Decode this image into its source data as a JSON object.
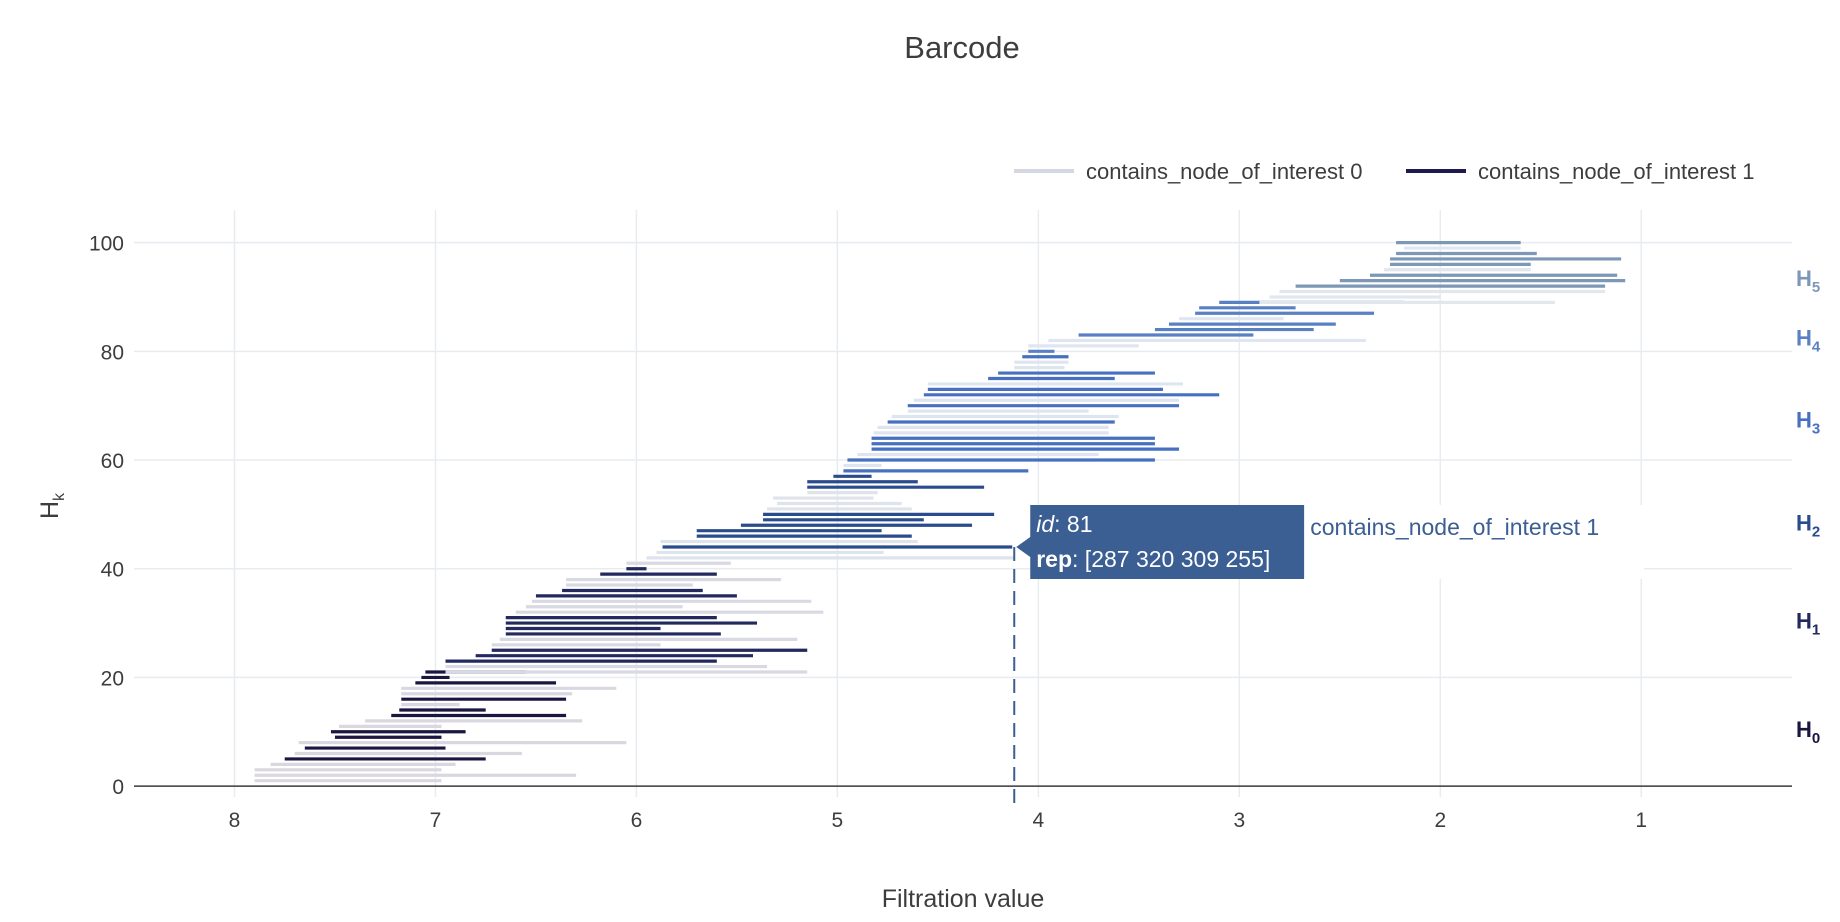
{
  "chart_data": {
    "type": "barcode",
    "title": "Barcode",
    "xlabel": "Filtration value",
    "ylabel_main": "H",
    "ylabel_sub": "k",
    "xlim": [
      8.5,
      0.25
    ],
    "ylim": [
      -2,
      106
    ],
    "x_reversed": true,
    "x_ticks": [
      8,
      7,
      6,
      5,
      4,
      3,
      2,
      1
    ],
    "y_ticks": [
      0,
      20,
      40,
      60,
      80,
      100
    ],
    "grid": true,
    "legend_position": "top-right",
    "legend": [
      {
        "label": "contains_node_of_interest 0",
        "color": "#d5d8e2"
      },
      {
        "label": "contains_node_of_interest 1",
        "color": "#1f1a4d"
      }
    ],
    "groups": [
      {
        "main": "H",
        "sub": "0",
        "y": 10.5,
        "color": "#1a1640",
        "light": "#dad7e0",
        "bars": [
          {
            "y": 1,
            "birth": 7.9,
            "death": 6.97,
            "f": 0
          },
          {
            "y": 2,
            "birth": 7.9,
            "death": 6.3,
            "f": 0
          },
          {
            "y": 3,
            "birth": 7.9,
            "death": 6.97,
            "f": 0
          },
          {
            "y": 4,
            "birth": 7.82,
            "death": 6.9,
            "f": 0
          },
          {
            "y": 5,
            "birth": 7.75,
            "death": 6.75,
            "f": 1
          },
          {
            "y": 6,
            "birth": 7.7,
            "death": 6.57,
            "f": 0
          },
          {
            "y": 7,
            "birth": 7.65,
            "death": 6.95,
            "f": 1
          },
          {
            "y": 8,
            "birth": 7.68,
            "death": 6.05,
            "f": 0
          },
          {
            "y": 9,
            "birth": 7.5,
            "death": 6.97,
            "f": 1
          },
          {
            "y": 10,
            "birth": 7.52,
            "death": 6.85,
            "f": 1
          },
          {
            "y": 11,
            "birth": 7.48,
            "death": 6.97,
            "f": 0
          },
          {
            "y": 12,
            "birth": 7.35,
            "death": 6.27,
            "f": 0
          },
          {
            "y": 13,
            "birth": 7.22,
            "death": 6.35,
            "f": 1
          },
          {
            "y": 14,
            "birth": 7.18,
            "death": 6.75,
            "f": 1
          },
          {
            "y": 15,
            "birth": 7.17,
            "death": 6.88,
            "f": 0
          },
          {
            "y": 16,
            "birth": 7.17,
            "death": 6.35,
            "f": 1
          },
          {
            "y": 17,
            "birth": 7.17,
            "death": 6.32,
            "f": 0
          },
          {
            "y": 18,
            "birth": 7.17,
            "death": 6.1,
            "f": 0
          },
          {
            "y": 19,
            "birth": 7.1,
            "death": 6.4,
            "f": 1
          },
          {
            "y": 20,
            "birth": 7.07,
            "death": 6.93,
            "f": 1
          },
          {
            "y": 21,
            "birth": 7.05,
            "death": 6.55,
            "f": 1
          }
        ]
      },
      {
        "main": "H",
        "sub": "1",
        "y": 30.5,
        "color": "#23285e",
        "light": "#d8d9e3",
        "bars": [
          {
            "y": 21,
            "birth": 6.95,
            "death": 5.15,
            "f": 0
          },
          {
            "y": 22,
            "birth": 6.95,
            "death": 5.35,
            "f": 0
          },
          {
            "y": 23,
            "birth": 6.95,
            "death": 5.6,
            "f": 1
          },
          {
            "y": 24,
            "birth": 6.8,
            "death": 5.42,
            "f": 1
          },
          {
            "y": 25,
            "birth": 6.72,
            "death": 5.15,
            "f": 1
          },
          {
            "y": 26,
            "birth": 6.72,
            "death": 5.88,
            "f": 0
          },
          {
            "y": 27,
            "birth": 6.68,
            "death": 5.2,
            "f": 0
          },
          {
            "y": 28,
            "birth": 6.65,
            "death": 5.58,
            "f": 1
          },
          {
            "y": 29,
            "birth": 6.65,
            "death": 5.88,
            "f": 1
          },
          {
            "y": 30,
            "birth": 6.65,
            "death": 5.4,
            "f": 1
          },
          {
            "y": 31,
            "birth": 6.65,
            "death": 5.6,
            "f": 1
          },
          {
            "y": 32,
            "birth": 6.6,
            "death": 5.07,
            "f": 0
          },
          {
            "y": 33,
            "birth": 6.55,
            "death": 5.77,
            "f": 0
          },
          {
            "y": 34,
            "birth": 6.52,
            "death": 5.13,
            "f": 0
          },
          {
            "y": 35,
            "birth": 6.5,
            "death": 5.5,
            "f": 1
          },
          {
            "y": 36,
            "birth": 6.37,
            "death": 5.67,
            "f": 1
          },
          {
            "y": 37,
            "birth": 6.35,
            "death": 5.72,
            "f": 0
          },
          {
            "y": 38,
            "birth": 6.35,
            "death": 5.28,
            "f": 0
          },
          {
            "y": 39,
            "birth": 6.18,
            "death": 5.6,
            "f": 1
          },
          {
            "y": 40,
            "birth": 6.05,
            "death": 5.95,
            "f": 1
          },
          {
            "y": 41,
            "birth": 6.05,
            "death": 5.53,
            "f": 0
          }
        ]
      },
      {
        "main": "H",
        "sub": "2",
        "y": 48.5,
        "color": "#2b4c8c",
        "light": "#dfe3ec",
        "bars": [
          {
            "y": 42,
            "birth": 5.95,
            "death": 4.12,
            "f": 0
          },
          {
            "y": 43,
            "birth": 5.9,
            "death": 4.77,
            "f": 0
          },
          {
            "y": 44,
            "birth": 5.87,
            "death": 4.13,
            "f": 1
          },
          {
            "y": 45,
            "birth": 5.88,
            "death": 4.6,
            "f": 0
          },
          {
            "y": 46,
            "birth": 5.7,
            "death": 4.63,
            "f": 1
          },
          {
            "y": 47,
            "birth": 5.7,
            "death": 4.78,
            "f": 1
          },
          {
            "y": 48,
            "birth": 5.48,
            "death": 4.33,
            "f": 1
          },
          {
            "y": 49,
            "birth": 5.37,
            "death": 4.57,
            "f": 1
          },
          {
            "y": 50,
            "birth": 5.37,
            "death": 4.22,
            "f": 1
          },
          {
            "y": 51,
            "birth": 5.35,
            "death": 4.63,
            "f": 0
          },
          {
            "y": 52,
            "birth": 5.3,
            "death": 4.68,
            "f": 0
          },
          {
            "y": 53,
            "birth": 5.32,
            "death": 4.82,
            "f": 0
          },
          {
            "y": 54,
            "birth": 5.15,
            "death": 4.8,
            "f": 0
          },
          {
            "y": 55,
            "birth": 5.15,
            "death": 4.27,
            "f": 1
          },
          {
            "y": 56,
            "birth": 5.15,
            "death": 4.6,
            "f": 1
          },
          {
            "y": 57,
            "birth": 5.02,
            "death": 4.83,
            "f": 1
          }
        ]
      },
      {
        "main": "H",
        "sub": "3",
        "y": 67.5,
        "color": "#4770c0",
        "light": "#dfe5f0",
        "bars": [
          {
            "y": 58,
            "birth": 4.97,
            "death": 4.05,
            "f": 1
          },
          {
            "y": 59,
            "birth": 4.97,
            "death": 4.78,
            "f": 0
          },
          {
            "y": 60,
            "birth": 4.95,
            "death": 3.42,
            "f": 1
          },
          {
            "y": 61,
            "birth": 4.9,
            "death": 3.7,
            "f": 0
          },
          {
            "y": 62,
            "birth": 4.83,
            "death": 3.3,
            "f": 1
          },
          {
            "y": 63,
            "birth": 4.83,
            "death": 3.42,
            "f": 1
          },
          {
            "y": 64,
            "birth": 4.83,
            "death": 3.42,
            "f": 1
          },
          {
            "y": 65,
            "birth": 4.82,
            "death": 3.65,
            "f": 0
          },
          {
            "y": 66,
            "birth": 4.8,
            "death": 3.65,
            "f": 0
          },
          {
            "y": 67,
            "birth": 4.75,
            "death": 3.62,
            "f": 1
          },
          {
            "y": 68,
            "birth": 4.73,
            "death": 3.6,
            "f": 0
          },
          {
            "y": 69,
            "birth": 4.65,
            "death": 3.75,
            "f": 0
          },
          {
            "y": 70,
            "birth": 4.65,
            "death": 3.3,
            "f": 1
          },
          {
            "y": 71,
            "birth": 4.62,
            "death": 3.3,
            "f": 0
          },
          {
            "y": 72,
            "birth": 4.57,
            "death": 3.1,
            "f": 1
          },
          {
            "y": 73,
            "birth": 4.55,
            "death": 3.38,
            "f": 1
          },
          {
            "y": 74,
            "birth": 4.55,
            "death": 3.28,
            "f": 0
          },
          {
            "y": 75,
            "birth": 4.25,
            "death": 3.62,
            "f": 1
          },
          {
            "y": 76,
            "birth": 4.2,
            "death": 3.42,
            "f": 1
          },
          {
            "y": 77,
            "birth": 4.12,
            "death": 3.87,
            "f": 0
          },
          {
            "y": 78,
            "birth": 4.12,
            "death": 3.85,
            "f": 0
          },
          {
            "y": 79,
            "birth": 4.08,
            "death": 3.85,
            "f": 1
          }
        ]
      },
      {
        "main": "H",
        "sub": "4",
        "y": 82.5,
        "color": "#5a80c4",
        "light": "#e0e6f1",
        "bars": [
          {
            "y": 80,
            "birth": 4.05,
            "death": 3.92,
            "f": 1
          },
          {
            "y": 81,
            "birth": 4.05,
            "death": 3.5,
            "f": 0
          },
          {
            "y": 82,
            "birth": 3.95,
            "death": 2.37,
            "f": 0
          },
          {
            "y": 83,
            "birth": 3.8,
            "death": 2.93,
            "f": 1
          },
          {
            "y": 84,
            "birth": 3.42,
            "death": 2.63,
            "f": 1
          },
          {
            "y": 85,
            "birth": 3.35,
            "death": 2.52,
            "f": 1
          },
          {
            "y": 86,
            "birth": 3.3,
            "death": 2.78,
            "f": 0
          },
          {
            "y": 87,
            "birth": 3.22,
            "death": 2.33,
            "f": 1
          },
          {
            "y": 88,
            "birth": 3.2,
            "death": 2.72,
            "f": 1
          },
          {
            "y": 89,
            "birth": 3.1,
            "death": 2.18,
            "f": 1
          }
        ]
      },
      {
        "main": "H",
        "sub": "5",
        "y": 93.5,
        "color": "#7d97b7",
        "light": "#e2e7ee",
        "bars": [
          {
            "y": 89,
            "birth": 2.9,
            "death": 1.43,
            "f": 0
          },
          {
            "y": 90,
            "birth": 2.85,
            "death": 2.0,
            "f": 0
          },
          {
            "y": 91,
            "birth": 2.8,
            "death": 1.18,
            "f": 0
          },
          {
            "y": 92,
            "birth": 2.72,
            "death": 1.18,
            "f": 1
          },
          {
            "y": 93,
            "birth": 2.5,
            "death": 1.08,
            "f": 1
          },
          {
            "y": 94,
            "birth": 2.35,
            "death": 1.12,
            "f": 1
          },
          {
            "y": 95,
            "birth": 2.28,
            "death": 1.55,
            "f": 0
          },
          {
            "y": 96,
            "birth": 2.25,
            "death": 1.55,
            "f": 1
          },
          {
            "y": 97,
            "birth": 2.25,
            "death": 1.1,
            "f": 1
          },
          {
            "y": 98,
            "birth": 2.22,
            "death": 1.52,
            "f": 1
          },
          {
            "y": 99,
            "birth": 2.18,
            "death": 1.6,
            "f": 0
          },
          {
            "y": 100,
            "birth": 2.22,
            "death": 1.6,
            "f": 1
          }
        ]
      }
    ],
    "hover": {
      "x": 4.12,
      "y": 44,
      "id_label": "id",
      "id_value": ": 81",
      "rep_label": "rep",
      "rep_value": ": [287 320 309 255]",
      "series_name": "contains_node_of_interest 1",
      "box_color": "#3b5e93"
    }
  }
}
